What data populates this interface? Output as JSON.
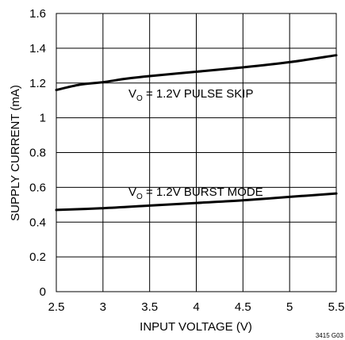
{
  "chart_data": {
    "type": "line",
    "xlabel": "INPUT VOLTAGE (V)",
    "ylabel": "SUPPLY CURRENT (mA)",
    "xlim": [
      2.5,
      5.5
    ],
    "ylim": [
      0,
      1.6
    ],
    "xticks": [
      "2.5",
      "3",
      "3.5",
      "4",
      "4.5",
      "5",
      "5.5"
    ],
    "yticks": [
      "0",
      "0.2",
      "0.4",
      "0.6",
      "0.8",
      "1",
      "1.2",
      "1.4",
      "1.6"
    ],
    "grid": true,
    "series": [
      {
        "x": [
          2.5,
          2.75,
          3.0,
          3.25,
          3.5,
          4.0,
          4.5,
          5.0,
          5.5
        ],
        "y": [
          1.16,
          1.19,
          1.205,
          1.225,
          1.24,
          1.265,
          1.29,
          1.32,
          1.36
        ]
      },
      {
        "x": [
          2.5,
          3.0,
          3.5,
          4.0,
          4.5,
          5.0,
          5.5
        ],
        "y": [
          0.47,
          0.48,
          0.495,
          0.51,
          0.525,
          0.545,
          0.565
        ]
      }
    ],
    "annotations": [
      {
        "prefix": "V",
        "sub": "O",
        "text": " = 1.2V PULSE SKIP"
      },
      {
        "prefix": "V",
        "sub": "O",
        "text": " = 1.2V BURST MODE"
      }
    ],
    "figure_id": "3415 G03"
  }
}
